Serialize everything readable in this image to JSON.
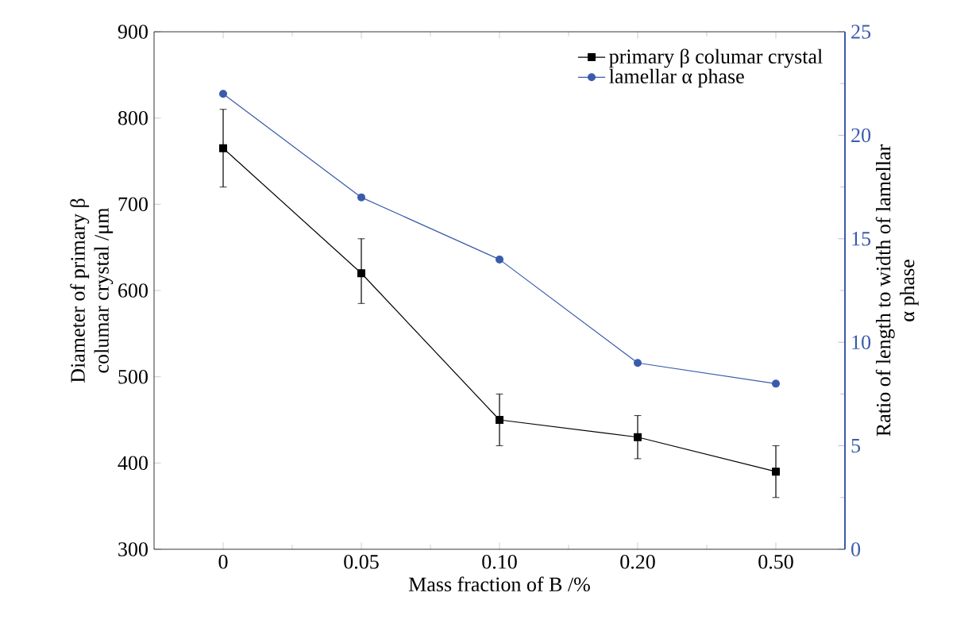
{
  "chart_data": {
    "type": "line",
    "xlabel": "Mass fraction of B /%",
    "ylabel": "Diameter of primary β columar crystal /μm",
    "y2label": "Ratio of  length to width of lamellar α phase",
    "categories": [
      "0",
      "0.05",
      "0.10",
      "0.20",
      "0.50"
    ],
    "series": [
      {
        "name": "primary β columar crystal",
        "color": "#000000",
        "marker": "square",
        "values": [
          765,
          620,
          450,
          430,
          390
        ],
        "errors": [
          [
            720,
            810
          ],
          [
            585,
            660
          ],
          [
            420,
            480
          ],
          [
            405,
            455
          ],
          [
            360,
            420
          ]
        ]
      },
      {
        "name": "lamellar α phase",
        "color": "#3a5bab",
        "marker": "circle",
        "axis": "y2",
        "values": [
          22,
          17,
          14,
          9,
          8
        ]
      }
    ],
    "ylim": [
      300,
      900
    ],
    "yticks": [
      300,
      400,
      500,
      600,
      700,
      800,
      900
    ],
    "y2lim": [
      0,
      25
    ],
    "y2ticks": [
      0,
      5,
      10,
      15,
      20,
      25
    ],
    "legend": "top right",
    "grid": false
  }
}
